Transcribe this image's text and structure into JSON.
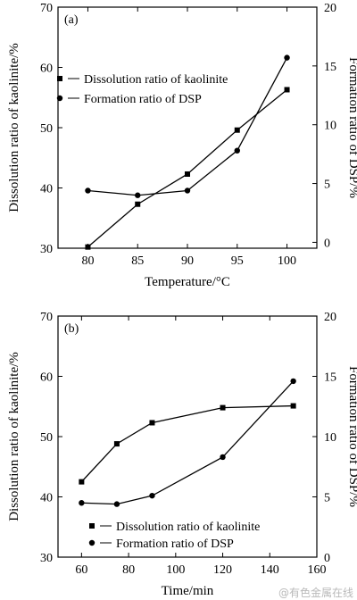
{
  "chart_data": [
    {
      "type": "line",
      "panel_label": "(a)",
      "xlabel": "Temperature/°C",
      "xlim": [
        77,
        103
      ],
      "xticks": [
        80,
        85,
        90,
        95,
        100
      ],
      "ylabel": "Dissolution ratio of kaolinite/%",
      "ylim": [
        30,
        70
      ],
      "yticks": [
        30,
        40,
        50,
        60,
        70
      ],
      "y2label": "Formation ratio of DSP/%",
      "y2lim": [
        -0.5,
        20
      ],
      "y2ticks": [
        0,
        5,
        10,
        15,
        20
      ],
      "legend_position": "top-left",
      "series": [
        {
          "name": "Dissolution ratio of kaolinite",
          "axis": "left",
          "marker": "square",
          "x": [
            80,
            85,
            90,
            95,
            100
          ],
          "y": [
            30.2,
            37.3,
            42.3,
            49.6,
            56.3
          ]
        },
        {
          "name": "Formation ratio of DSP",
          "axis": "right",
          "marker": "circle",
          "x": [
            80,
            85,
            90,
            95,
            100
          ],
          "y": [
            4.4,
            4.0,
            4.4,
            7.8,
            15.7
          ]
        }
      ]
    },
    {
      "type": "line",
      "panel_label": "(b)",
      "xlabel": "Time/min",
      "xlim": [
        50,
        160
      ],
      "xticks": [
        60,
        80,
        100,
        120,
        140,
        160
      ],
      "ylabel": "Dissolution ratio of kaolinite/%",
      "ylim": [
        30,
        70
      ],
      "yticks": [
        30,
        40,
        50,
        60,
        70
      ],
      "y2label": "Formation ratio of DSP/%",
      "y2lim": [
        0,
        20
      ],
      "y2ticks": [
        0,
        5,
        10,
        15,
        20
      ],
      "legend_position": "bottom-right",
      "series": [
        {
          "name": "Dissolution ratio of kaolinite",
          "axis": "left",
          "marker": "square",
          "x": [
            60,
            75,
            90,
            120,
            150
          ],
          "y": [
            42.5,
            48.8,
            52.3,
            54.8,
            55.1
          ]
        },
        {
          "name": "Formation ratio of DSP",
          "axis": "right",
          "marker": "circle",
          "x": [
            60,
            75,
            90,
            120,
            150
          ],
          "y": [
            4.5,
            4.4,
            5.1,
            8.3,
            14.6
          ]
        }
      ]
    }
  ],
  "watermark": "@有色金属在线"
}
